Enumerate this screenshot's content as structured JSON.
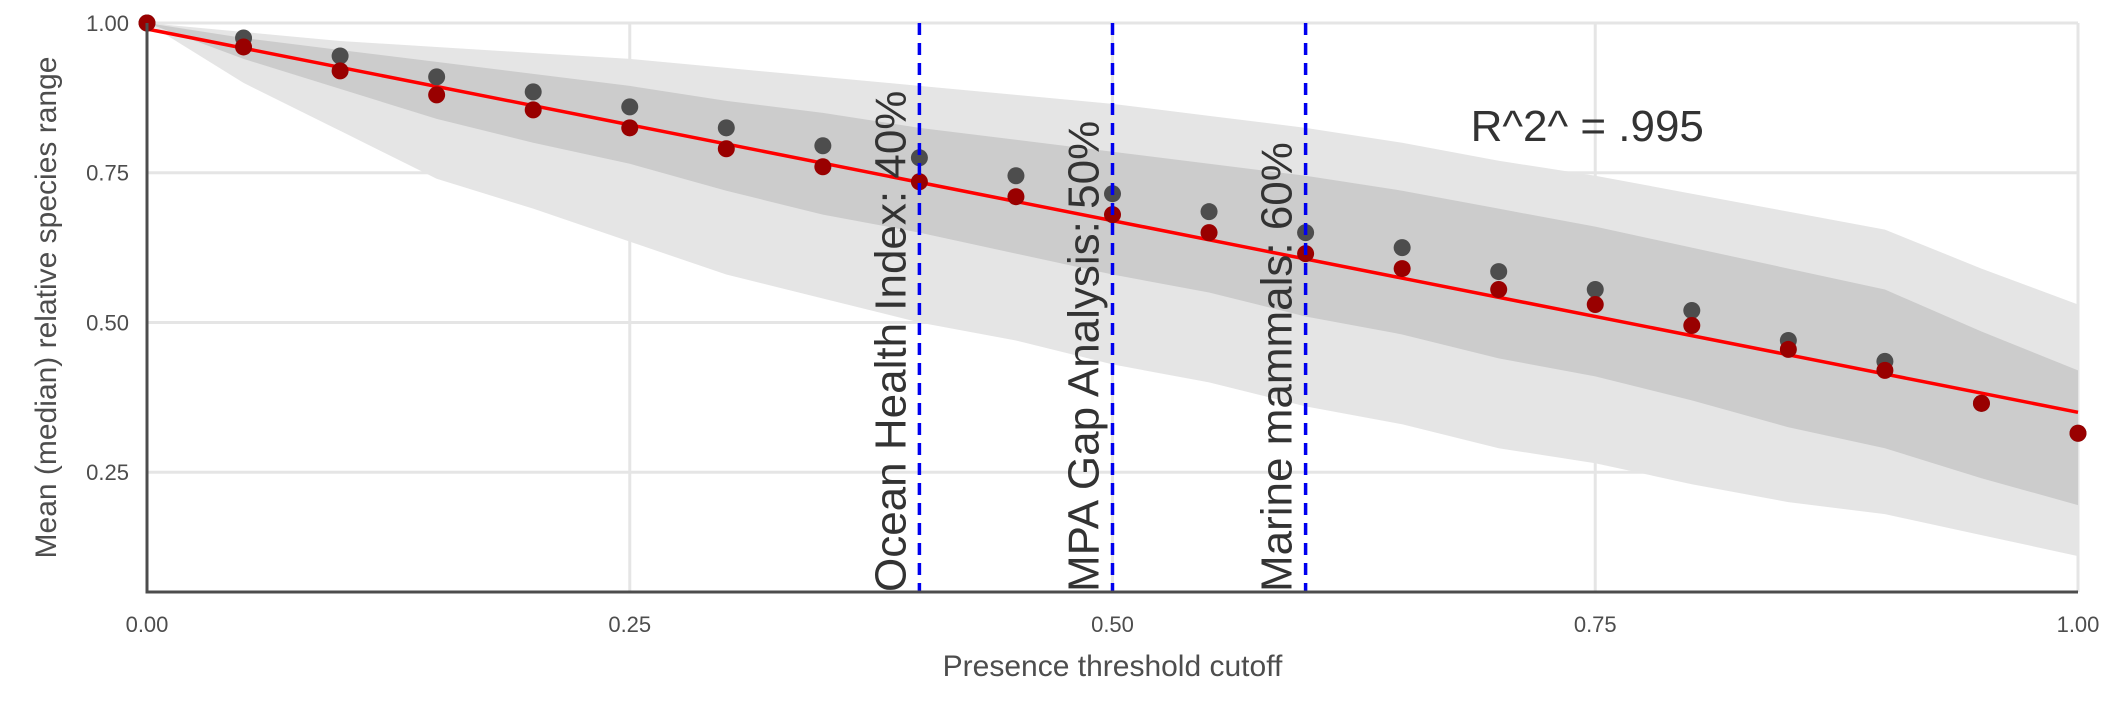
{
  "chart_data": {
    "type": "scatter",
    "title": "",
    "xlabel": "Presence threshold cutoff",
    "ylabel": "Mean (median) relative species range",
    "xlim": [
      0,
      1
    ],
    "ylim": [
      0.05,
      1.0
    ],
    "x_ticks": [
      "0.00",
      "0.25",
      "0.50",
      "0.75",
      "1.00"
    ],
    "y_ticks": [
      "0.25",
      "0.50",
      "0.75",
      "1.00"
    ],
    "grid": true,
    "legend": "none",
    "colors": {
      "mean_points": "#4d4d4d",
      "median_points": "#990000",
      "fit_line": "#ff0000",
      "vlines": "#0000ee",
      "band_outer": "#e5e5e5",
      "band_inner": "#cccccc"
    },
    "x": [
      0.0,
      0.05,
      0.1,
      0.15,
      0.2,
      0.25,
      0.3,
      0.35,
      0.4,
      0.45,
      0.5,
      0.55,
      0.6,
      0.65,
      0.7,
      0.75,
      0.8,
      0.85,
      0.9,
      0.95,
      1.0
    ],
    "series": [
      {
        "values": [
          1.0,
          0.975,
          0.945,
          0.91,
          0.885,
          0.86,
          0.825,
          0.795,
          0.775,
          0.745,
          0.715,
          0.685,
          0.65,
          0.625,
          0.585,
          0.555,
          0.52,
          0.47,
          0.435,
          0.365,
          0.315
        ]
      },
      {
        "values": [
          1.0,
          0.96,
          0.92,
          0.88,
          0.855,
          0.825,
          0.79,
          0.76,
          0.735,
          0.71,
          0.68,
          0.65,
          0.615,
          0.59,
          0.555,
          0.53,
          0.495,
          0.455,
          0.42,
          0.365,
          0.315
        ]
      }
    ],
    "band_outer": {
      "x": [
        0.0,
        0.05,
        0.1,
        0.15,
        0.2,
        0.25,
        0.3,
        0.35,
        0.4,
        0.45,
        0.5,
        0.55,
        0.6,
        0.65,
        0.7,
        0.75,
        0.8,
        0.85,
        0.9,
        0.95,
        1.0
      ],
      "lower": [
        1.0,
        0.9,
        0.82,
        0.74,
        0.69,
        0.635,
        0.58,
        0.54,
        0.5,
        0.47,
        0.43,
        0.4,
        0.36,
        0.33,
        0.29,
        0.265,
        0.23,
        0.2,
        0.18,
        0.145,
        0.11
      ],
      "upper": [
        1.0,
        0.985,
        0.97,
        0.96,
        0.95,
        0.94,
        0.925,
        0.91,
        0.895,
        0.88,
        0.865,
        0.845,
        0.825,
        0.8,
        0.77,
        0.745,
        0.715,
        0.685,
        0.655,
        0.59,
        0.53
      ]
    },
    "band_inner": {
      "x": [
        0.0,
        0.05,
        0.1,
        0.15,
        0.2,
        0.25,
        0.3,
        0.35,
        0.4,
        0.45,
        0.5,
        0.55,
        0.6,
        0.65,
        0.7,
        0.75,
        0.8,
        0.85,
        0.9,
        0.95,
        1.0
      ],
      "lower": [
        1.0,
        0.94,
        0.89,
        0.84,
        0.8,
        0.765,
        0.72,
        0.68,
        0.65,
        0.615,
        0.58,
        0.55,
        0.51,
        0.48,
        0.44,
        0.41,
        0.37,
        0.325,
        0.29,
        0.24,
        0.195
      ],
      "upper": [
        1.0,
        0.975,
        0.955,
        0.935,
        0.915,
        0.895,
        0.87,
        0.85,
        0.825,
        0.805,
        0.785,
        0.765,
        0.745,
        0.72,
        0.69,
        0.66,
        0.625,
        0.59,
        0.555,
        0.485,
        0.42
      ]
    },
    "fit_line": {
      "x": [
        0.0,
        1.0
      ],
      "y": [
        0.99,
        0.35
      ]
    },
    "vlines": [
      {
        "x": 0.4,
        "label": "Ocean Health Index: 40%"
      },
      {
        "x": 0.5,
        "label": "MPA Gap Analysis: 50%"
      },
      {
        "x": 0.6,
        "label": "Marine mammals: 60%"
      }
    ],
    "annotation": {
      "text": "R^2^ = .995",
      "x": 0.75,
      "y": 0.83
    }
  }
}
